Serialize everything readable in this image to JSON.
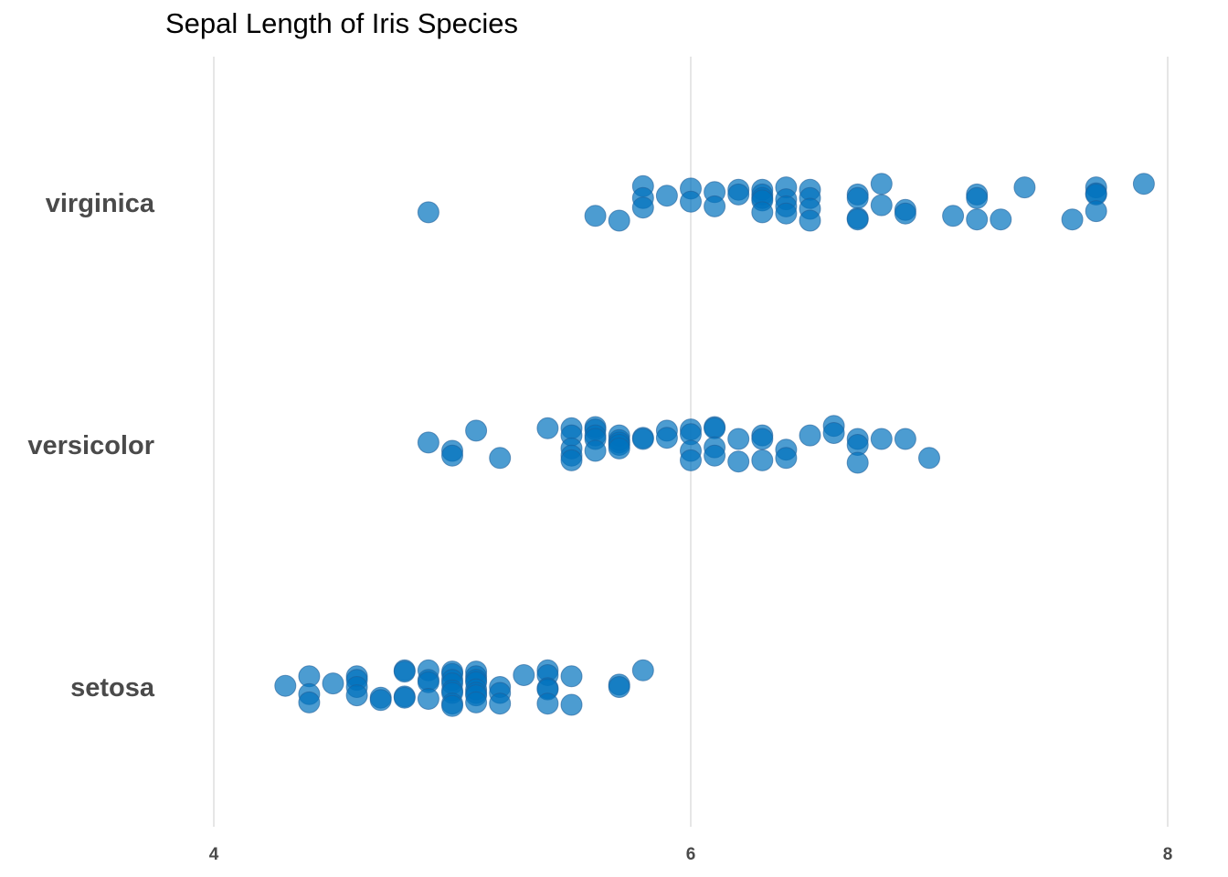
{
  "chart_data": {
    "type": "scatter",
    "title": "Sepal Length of Iris Species",
    "xlabel": "",
    "ylabel": "",
    "xlim": [
      3.95,
      8.05
    ],
    "x_ticks": [
      "4",
      "6",
      "8"
    ],
    "x_tick_values": [
      4,
      6,
      8
    ],
    "grid": "vertical",
    "legend": "none",
    "categories": [
      "virginica",
      "versicolor",
      "setosa"
    ],
    "point_color": "#0072BD",
    "point_opacity": 0.7,
    "series": [
      {
        "category": "virginica",
        "points": [
          [
            4.9,
            -0.08
          ],
          [
            5.6,
            -0.11
          ],
          [
            5.7,
            -0.15
          ],
          [
            5.8,
            0.14
          ],
          [
            5.8,
            0.04
          ],
          [
            5.8,
            -0.04
          ],
          [
            5.9,
            0.06
          ],
          [
            6.0,
            0.12
          ],
          [
            6.0,
            0.01
          ],
          [
            6.1,
            0.09
          ],
          [
            6.1,
            -0.03
          ],
          [
            6.2,
            0.11
          ],
          [
            6.2,
            0.07
          ],
          [
            6.3,
            0.11
          ],
          [
            6.3,
            0.07
          ],
          [
            6.3,
            0.04
          ],
          [
            6.3,
            0.02
          ],
          [
            6.3,
            -0.08
          ],
          [
            6.4,
            0.13
          ],
          [
            6.4,
            0.03
          ],
          [
            6.4,
            -0.03
          ],
          [
            6.4,
            -0.09
          ],
          [
            6.5,
            0.11
          ],
          [
            6.5,
            0.04
          ],
          [
            6.5,
            -0.05
          ],
          [
            6.5,
            -0.15
          ],
          [
            6.7,
            0.07
          ],
          [
            6.7,
            0.04
          ],
          [
            6.7,
            -0.13
          ],
          [
            6.7,
            -0.14
          ],
          [
            6.8,
            0.16
          ],
          [
            6.8,
            -0.02
          ],
          [
            6.9,
            -0.06
          ],
          [
            6.9,
            -0.09
          ],
          [
            7.1,
            -0.11
          ],
          [
            7.2,
            0.07
          ],
          [
            7.2,
            0.04
          ],
          [
            7.2,
            -0.14
          ],
          [
            7.3,
            -0.14
          ],
          [
            7.4,
            0.13
          ],
          [
            7.6,
            -0.14
          ],
          [
            7.7,
            0.13
          ],
          [
            7.7,
            0.08
          ],
          [
            7.7,
            0.07
          ],
          [
            7.7,
            -0.07
          ],
          [
            7.9,
            0.16
          ]
        ]
      },
      {
        "category": "versicolor",
        "points": [
          [
            4.9,
            0.02
          ],
          [
            5.0,
            -0.05
          ],
          [
            5.0,
            -0.09
          ],
          [
            5.1,
            0.12
          ],
          [
            5.2,
            -0.11
          ],
          [
            5.4,
            0.14
          ],
          [
            5.5,
            0.14
          ],
          [
            5.5,
            0.08
          ],
          [
            5.5,
            -0.03
          ],
          [
            5.5,
            -0.09
          ],
          [
            5.5,
            -0.13
          ],
          [
            5.6,
            0.15
          ],
          [
            5.6,
            0.13
          ],
          [
            5.6,
            0.08
          ],
          [
            5.6,
            0.05
          ],
          [
            5.6,
            -0.05
          ],
          [
            5.7,
            0.08
          ],
          [
            5.7,
            0.04
          ],
          [
            5.7,
            0.02
          ],
          [
            5.7,
            0.0
          ],
          [
            5.7,
            -0.03
          ],
          [
            5.8,
            0.06
          ],
          [
            5.8,
            0.05
          ],
          [
            5.9,
            0.12
          ],
          [
            5.9,
            0.06
          ],
          [
            6.0,
            0.13
          ],
          [
            6.0,
            0.09
          ],
          [
            6.0,
            -0.05
          ],
          [
            6.0,
            -0.13
          ],
          [
            6.1,
            0.15
          ],
          [
            6.1,
            0.14
          ],
          [
            6.1,
            -0.02
          ],
          [
            6.1,
            -0.09
          ],
          [
            6.2,
            0.05
          ],
          [
            6.2,
            -0.14
          ],
          [
            6.3,
            0.08
          ],
          [
            6.3,
            0.05
          ],
          [
            6.3,
            -0.13
          ],
          [
            6.4,
            -0.04
          ],
          [
            6.4,
            -0.11
          ],
          [
            6.5,
            0.08
          ],
          [
            6.6,
            0.16
          ],
          [
            6.6,
            0.1
          ],
          [
            6.7,
            0.05
          ],
          [
            6.7,
            0.0
          ],
          [
            6.7,
            -0.15
          ],
          [
            6.8,
            0.05
          ],
          [
            6.9,
            0.05
          ],
          [
            7.0,
            -0.11
          ]
        ]
      },
      {
        "category": "setosa",
        "points": [
          [
            4.3,
            0.01
          ],
          [
            4.4,
            0.09
          ],
          [
            4.4,
            -0.06
          ],
          [
            4.4,
            -0.13
          ],
          [
            4.5,
            0.03
          ],
          [
            4.6,
            0.09
          ],
          [
            4.6,
            0.06
          ],
          [
            4.6,
            0.0
          ],
          [
            4.6,
            -0.07
          ],
          [
            4.7,
            -0.09
          ],
          [
            4.7,
            -0.11
          ],
          [
            4.8,
            0.14
          ],
          [
            4.8,
            0.13
          ],
          [
            4.8,
            -0.08
          ],
          [
            4.8,
            -0.09
          ],
          [
            4.9,
            0.14
          ],
          [
            4.9,
            0.06
          ],
          [
            4.9,
            0.04
          ],
          [
            4.9,
            -0.1
          ],
          [
            5.0,
            0.13
          ],
          [
            5.0,
            0.11
          ],
          [
            5.0,
            0.06
          ],
          [
            5.0,
            0.03
          ],
          [
            5.0,
            -0.03
          ],
          [
            5.0,
            -0.05
          ],
          [
            5.0,
            -0.14
          ],
          [
            5.0,
            -0.16
          ],
          [
            5.1,
            0.13
          ],
          [
            5.1,
            0.09
          ],
          [
            5.1,
            0.06
          ],
          [
            5.1,
            0.04
          ],
          [
            5.1,
            -0.02
          ],
          [
            5.1,
            -0.05
          ],
          [
            5.1,
            -0.07
          ],
          [
            5.1,
            -0.13
          ],
          [
            5.2,
            0.0
          ],
          [
            5.2,
            -0.05
          ],
          [
            5.2,
            -0.14
          ],
          [
            5.3,
            0.1
          ],
          [
            5.4,
            0.14
          ],
          [
            5.4,
            0.1
          ],
          [
            5.4,
            -0.01
          ],
          [
            5.4,
            -0.02
          ],
          [
            5.4,
            -0.14
          ],
          [
            5.5,
            0.09
          ],
          [
            5.5,
            -0.15
          ],
          [
            5.7,
            0.02
          ],
          [
            5.7,
            0.0
          ],
          [
            5.8,
            0.14
          ]
        ]
      }
    ]
  }
}
